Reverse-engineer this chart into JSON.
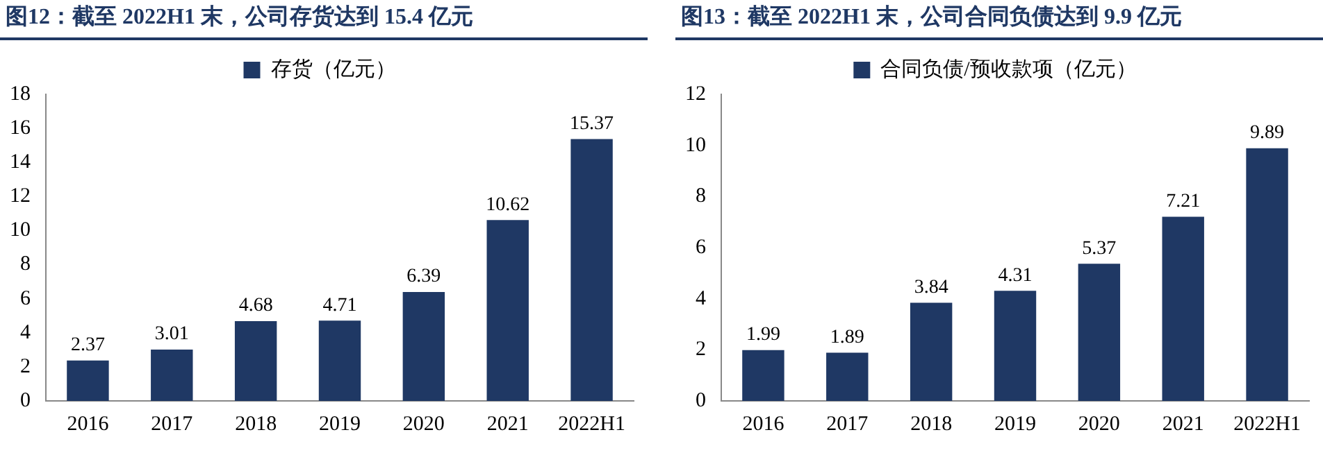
{
  "chart_data": [
    {
      "type": "bar",
      "title": "图12：截至 2022H1 末，公司存货达到 15.4 亿元",
      "categories": [
        "2016",
        "2017",
        "2018",
        "2019",
        "2020",
        "2021",
        "2022H1"
      ],
      "series": [
        {
          "name": "存货（亿元）",
          "color": "#1f3864",
          "values": [
            2.37,
            3.01,
            4.68,
            4.71,
            6.39,
            10.62,
            15.37
          ]
        }
      ],
      "ylim": [
        0,
        18
      ],
      "yticks": [
        0,
        2,
        4,
        6,
        8,
        10,
        12,
        14,
        16,
        18
      ],
      "data_labels": true,
      "legend": "top",
      "grid": false
    },
    {
      "type": "bar",
      "title": "图13：截至 2022H1 末，公司合同负债达到 9.9 亿元",
      "categories": [
        "2016",
        "2017",
        "2018",
        "2019",
        "2020",
        "2021",
        "2022H1"
      ],
      "series": [
        {
          "name": "合同负债/预收款项（亿元）",
          "color": "#1f3864",
          "values": [
            1.99,
            1.89,
            3.84,
            4.31,
            5.37,
            7.21,
            9.89
          ]
        }
      ],
      "ylim": [
        0,
        12
      ],
      "yticks": [
        0,
        2,
        4,
        6,
        8,
        10,
        12
      ],
      "data_labels": true,
      "legend": "top",
      "grid": false
    }
  ]
}
